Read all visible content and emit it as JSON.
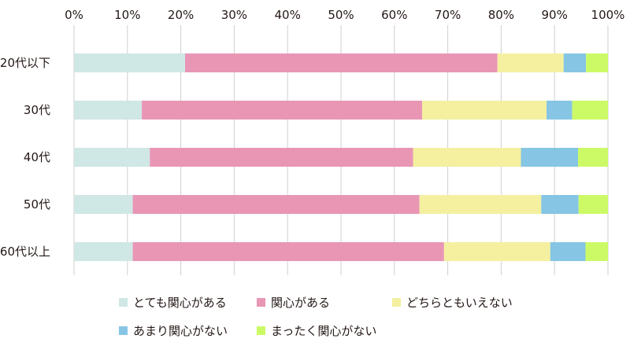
{
  "chart_data": {
    "type": "bar",
    "orientation": "horizontal",
    "stacked": "percent",
    "title": "",
    "xlabel": "",
    "ylabel": "",
    "xlim": [
      0,
      100
    ],
    "x_ticks": [
      "0%",
      "10%",
      "20%",
      "30%",
      "40%",
      "50%",
      "60%",
      "70%",
      "80%",
      "90%",
      "100%"
    ],
    "grid": "vertical",
    "legend_position": "bottom",
    "categories": [
      "20代以下",
      "30代",
      "40代",
      "50代",
      "60代以上"
    ],
    "series": [
      {
        "name": "とても関心がある",
        "color": "#cfe7e5",
        "values": [
          20.8,
          12.7,
          14.2,
          11.0,
          11.0
        ]
      },
      {
        "name": "関心がある",
        "color": "#e996b5",
        "values": [
          58.5,
          52.5,
          49.3,
          53.7,
          58.3
        ]
      },
      {
        "name": "どちらともいえない",
        "color": "#f4f0a0",
        "values": [
          12.4,
          23.3,
          20.2,
          22.8,
          19.9
        ]
      },
      {
        "name": "あまり関心がない",
        "color": "#86c5e3",
        "values": [
          4.2,
          4.8,
          10.7,
          7.0,
          6.6
        ]
      },
      {
        "name": "まったく関心がない",
        "color": "#ccfa66",
        "values": [
          4.1,
          6.7,
          5.6,
          5.5,
          4.2
        ]
      }
    ]
  }
}
